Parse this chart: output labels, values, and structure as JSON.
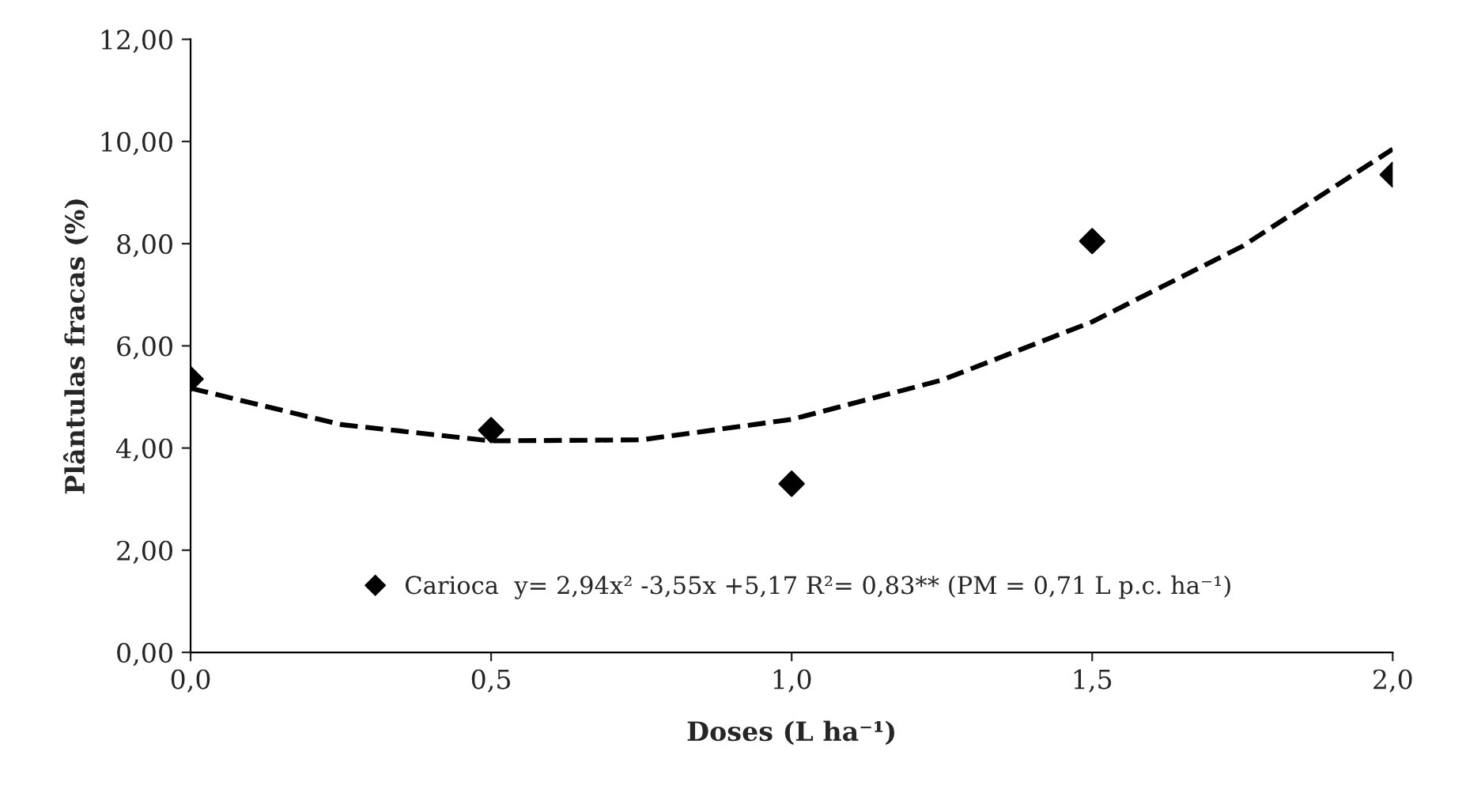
{
  "chart_data": {
    "type": "scatter",
    "xlabel": "Doses (L ha⁻¹)",
    "ylabel": "Plântulas fracas (%)",
    "series": [
      {
        "name": "Carioca  y= 2,94x² -3,55x +5,17 R²= 0,83** (PM = 0,71 L p.c. ha⁻¹)",
        "color": "#000000",
        "marker": "diamond",
        "x": [
          0,
          0.5,
          1.0,
          1.5,
          2.0
        ],
        "values": [
          5.35,
          4.35,
          3.3,
          8.05,
          9.35
        ]
      },
      {
        "type": "line",
        "color": "#000000",
        "line_style": "dashed",
        "marker": "none",
        "x": [
          0,
          0.25,
          0.5,
          0.75,
          1.0,
          1.25,
          1.5,
          1.75,
          2.0
        ],
        "values": [
          5.17,
          4.46,
          4.14,
          4.16,
          4.56,
          5.33,
          6.47,
          7.95,
          9.85
        ]
      }
    ],
    "xlim": [
      0,
      2.0
    ],
    "ylim": [
      0,
      12
    ],
    "xticks": [
      {
        "value": 0,
        "label": "0,0"
      },
      {
        "value": 0.5,
        "label": "0,5"
      },
      {
        "value": 1.0,
        "label": "1,0"
      },
      {
        "value": 1.5,
        "label": "1,5"
      },
      {
        "value": 2.0,
        "label": "2,0"
      }
    ],
    "yticks": [
      {
        "value": 0,
        "label": "0,00"
      },
      {
        "value": 2,
        "label": "2,00"
      },
      {
        "value": 4,
        "label": "4,00"
      },
      {
        "value": 6,
        "label": "6,00"
      },
      {
        "value": 8,
        "label": "8,00"
      },
      {
        "value": 10,
        "label": "10,00"
      },
      {
        "value": 12,
        "label": "12,00"
      }
    ],
    "grid": false,
    "legend": "bottom"
  }
}
